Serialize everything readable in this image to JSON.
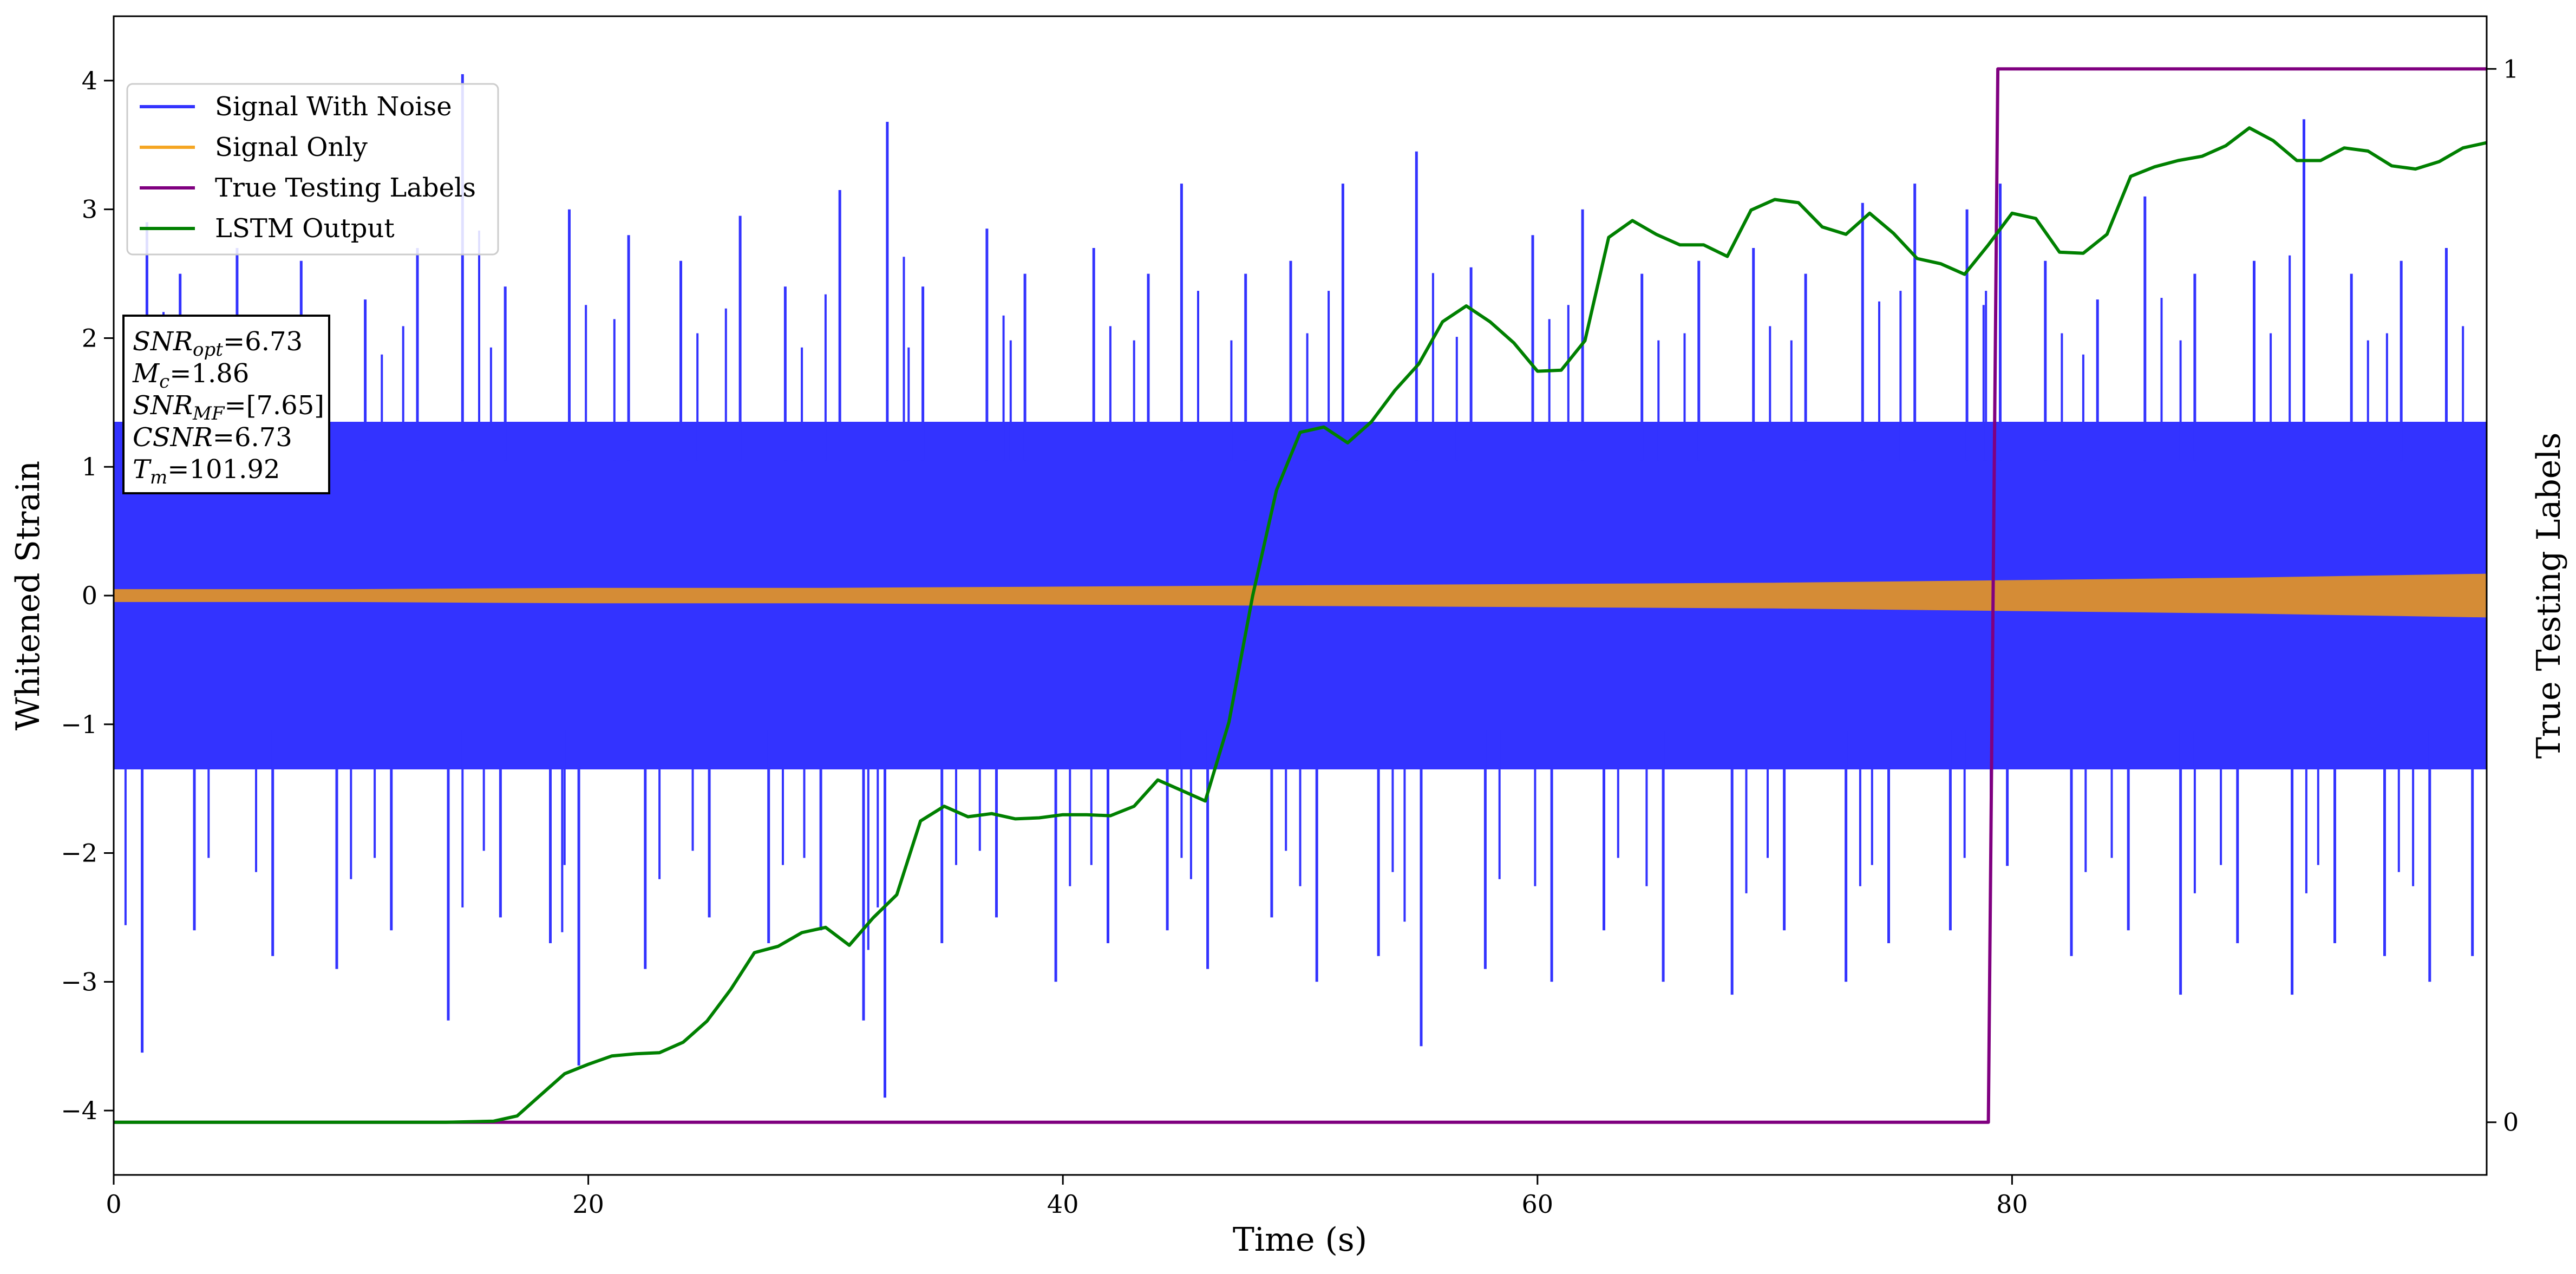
{
  "chart_data": {
    "type": "line",
    "title": "",
    "xlabel": "Time (s)",
    "ylabel": "Whitened Strain",
    "ylabel_right": "True Testing Labels",
    "xlim": [
      0,
      100
    ],
    "ylim": [
      -4.5,
      4.5
    ],
    "ylim_right": [
      -0.05,
      1.05
    ],
    "x_ticks": [
      0,
      20,
      40,
      60,
      80
    ],
    "y_ticks": [
      -4,
      -3,
      -2,
      -1,
      0,
      1,
      2,
      3,
      4
    ],
    "y_ticks_right": [
      0,
      1
    ],
    "grid": false,
    "legend_position": "upper-left",
    "colors": {
      "noise": "#3333ff",
      "signal": "#f5a623",
      "labels": "#800080",
      "lstm": "#008000"
    },
    "series": [
      {
        "name": "Signal With Noise",
        "axis": "left",
        "render": "band",
        "x": [
          0,
          10,
          20,
          30,
          40,
          50,
          60,
          70,
          80,
          90,
          100
        ],
        "upper": [
          1.35,
          1.35,
          1.35,
          1.35,
          1.35,
          1.35,
          1.35,
          1.35,
          1.35,
          1.35,
          1.35
        ],
        "lower": [
          -1.35,
          -1.35,
          -1.35,
          -1.35,
          -1.35,
          -1.35,
          -1.35,
          -1.35,
          -1.35,
          -1.35,
          -1.35
        ],
        "peaks": [
          [
            1.4,
            2.9
          ],
          [
            2.8,
            2.5
          ],
          [
            5.2,
            2.7
          ],
          [
            7.9,
            2.6
          ],
          [
            10.6,
            2.3
          ],
          [
            12.8,
            2.7
          ],
          [
            14.7,
            4.05
          ],
          [
            16.5,
            2.4
          ],
          [
            19.2,
            3.0
          ],
          [
            21.7,
            2.8
          ],
          [
            23.9,
            2.6
          ],
          [
            26.4,
            2.95
          ],
          [
            28.3,
            2.4
          ],
          [
            30.6,
            3.15
          ],
          [
            32.6,
            3.68
          ],
          [
            34.1,
            2.4
          ],
          [
            36.8,
            2.85
          ],
          [
            38.4,
            2.5
          ],
          [
            41.3,
            2.7
          ],
          [
            43.6,
            2.5
          ],
          [
            45.0,
            3.2
          ],
          [
            47.7,
            2.5
          ],
          [
            49.6,
            2.6
          ],
          [
            51.8,
            3.2
          ],
          [
            54.9,
            3.45
          ],
          [
            57.2,
            2.55
          ],
          [
            59.8,
            2.8
          ],
          [
            61.9,
            3.0
          ],
          [
            64.4,
            2.5
          ],
          [
            66.8,
            2.6
          ],
          [
            69.1,
            2.7
          ],
          [
            71.3,
            2.5
          ],
          [
            73.7,
            3.05
          ],
          [
            75.9,
            3.2
          ],
          [
            78.1,
            3.0
          ],
          [
            79.5,
            3.2
          ],
          [
            81.4,
            2.6
          ],
          [
            83.6,
            2.3
          ],
          [
            85.6,
            3.1
          ],
          [
            87.7,
            2.5
          ],
          [
            90.2,
            2.6
          ],
          [
            92.3,
            3.7
          ],
          [
            94.3,
            2.5
          ],
          [
            96.4,
            2.6
          ],
          [
            98.3,
            2.7
          ]
        ],
        "troughs": [
          [
            1.2,
            -3.55
          ],
          [
            3.4,
            -2.6
          ],
          [
            6.7,
            -2.8
          ],
          [
            9.4,
            -2.9
          ],
          [
            11.7,
            -2.6
          ],
          [
            14.1,
            -3.3
          ],
          [
            16.3,
            -2.5
          ],
          [
            18.4,
            -2.7
          ],
          [
            19.6,
            -3.65
          ],
          [
            22.4,
            -2.9
          ],
          [
            25.1,
            -2.5
          ],
          [
            27.6,
            -2.7
          ],
          [
            29.8,
            -2.6
          ],
          [
            31.6,
            -3.3
          ],
          [
            32.5,
            -3.9
          ],
          [
            34.9,
            -2.7
          ],
          [
            37.2,
            -2.5
          ],
          [
            39.7,
            -3.0
          ],
          [
            41.9,
            -2.7
          ],
          [
            44.4,
            -2.6
          ],
          [
            46.1,
            -2.9
          ],
          [
            48.8,
            -2.5
          ],
          [
            50.7,
            -3.0
          ],
          [
            53.3,
            -2.8
          ],
          [
            55.1,
            -3.5
          ],
          [
            57.8,
            -2.9
          ],
          [
            60.6,
            -3.0
          ],
          [
            62.8,
            -2.6
          ],
          [
            65.3,
            -3.0
          ],
          [
            68.2,
            -3.1
          ],
          [
            70.4,
            -2.6
          ],
          [
            73.0,
            -3.0
          ],
          [
            74.8,
            -2.7
          ],
          [
            77.4,
            -2.6
          ],
          [
            79.8,
            -2.1
          ],
          [
            82.5,
            -2.8
          ],
          [
            84.9,
            -2.6
          ],
          [
            87.1,
            -3.1
          ],
          [
            89.5,
            -2.7
          ],
          [
            91.8,
            -3.1
          ],
          [
            93.6,
            -2.7
          ],
          [
            95.7,
            -2.8
          ],
          [
            97.6,
            -3.0
          ],
          [
            99.4,
            -2.8
          ]
        ]
      },
      {
        "name": "Signal Only",
        "axis": "left",
        "render": "band",
        "x": [
          0,
          10,
          20,
          30,
          40,
          50,
          60,
          70,
          80,
          90,
          100
        ],
        "upper": [
          0.05,
          0.05,
          0.06,
          0.06,
          0.07,
          0.08,
          0.09,
          0.1,
          0.12,
          0.14,
          0.17
        ],
        "lower": [
          -0.05,
          -0.05,
          -0.06,
          -0.06,
          -0.07,
          -0.08,
          -0.09,
          -0.1,
          -0.12,
          -0.14,
          -0.17
        ]
      },
      {
        "name": "True Testing Labels",
        "axis": "right",
        "render": "line",
        "x": [
          0,
          79.0,
          79.4,
          100
        ],
        "y": [
          0,
          0,
          1,
          1
        ]
      },
      {
        "name": "LSTM Output",
        "axis": "right",
        "render": "line",
        "x": [
          0,
          14,
          16,
          17,
          18,
          19,
          20,
          21,
          22,
          23,
          24,
          25,
          26,
          27,
          28,
          29,
          30,
          31,
          32,
          33,
          34,
          35,
          36,
          37,
          38,
          39,
          40,
          41,
          42,
          43,
          44,
          45,
          46,
          47,
          48,
          49,
          50,
          51,
          52,
          53,
          54,
          55,
          56,
          57,
          58,
          59,
          60,
          61,
          62,
          63,
          64,
          65,
          66,
          67,
          68,
          69,
          70,
          71,
          72,
          73,
          74,
          75,
          76,
          77,
          78,
          79,
          80,
          81,
          82,
          83,
          84,
          85,
          86,
          87,
          88,
          89,
          90,
          91,
          92,
          93,
          94,
          95,
          96,
          97,
          98,
          99,
          100
        ],
        "y": [
          0,
          0,
          0.001,
          0.006,
          0.026,
          0.046,
          0.055,
          0.063,
          0.065,
          0.066,
          0.076,
          0.096,
          0.126,
          0.161,
          0.167,
          0.18,
          0.185,
          0.168,
          0.194,
          0.216,
          0.286,
          0.3,
          0.29,
          0.293,
          0.288,
          0.289,
          0.292,
          0.292,
          0.291,
          0.3,
          0.325,
          0.315,
          0.305,
          0.38,
          0.5,
          0.6,
          0.655,
          0.66,
          0.645,
          0.665,
          0.695,
          0.72,
          0.76,
          0.775,
          0.76,
          0.74,
          0.713,
          0.714,
          0.742,
          0.84,
          0.856,
          0.843,
          0.833,
          0.833,
          0.822,
          0.866,
          0.876,
          0.873,
          0.85,
          0.843,
          0.863,
          0.844,
          0.82,
          0.815,
          0.805,
          0.833,
          0.863,
          0.858,
          0.826,
          0.825,
          0.843,
          0.898,
          0.907,
          0.913,
          0.917,
          0.927,
          0.944,
          0.932,
          0.913,
          0.913,
          0.925,
          0.922,
          0.908,
          0.905,
          0.912,
          0.925,
          0.93
        ]
      }
    ]
  },
  "legend": {
    "items": [
      {
        "label": "Signal With Noise",
        "color": "#3333ff"
      },
      {
        "label": "Signal Only",
        "color": "#f5a623"
      },
      {
        "label": "True Testing Labels",
        "color": "#800080"
      },
      {
        "label": "LSTM Output",
        "color": "#008000"
      }
    ]
  },
  "info_box": {
    "lines": [
      {
        "symbol": "SNR",
        "sub": "opt",
        "value": "=6.73"
      },
      {
        "symbol": "M",
        "sub": "c",
        "value": "=1.86"
      },
      {
        "symbol": "SNR",
        "sub": "MF",
        "value": "=[7.65]"
      },
      {
        "symbol": "CSNR",
        "sub": "",
        "value": "=6.73"
      },
      {
        "symbol": "T",
        "sub": "m",
        "value": "=101.92"
      }
    ]
  }
}
